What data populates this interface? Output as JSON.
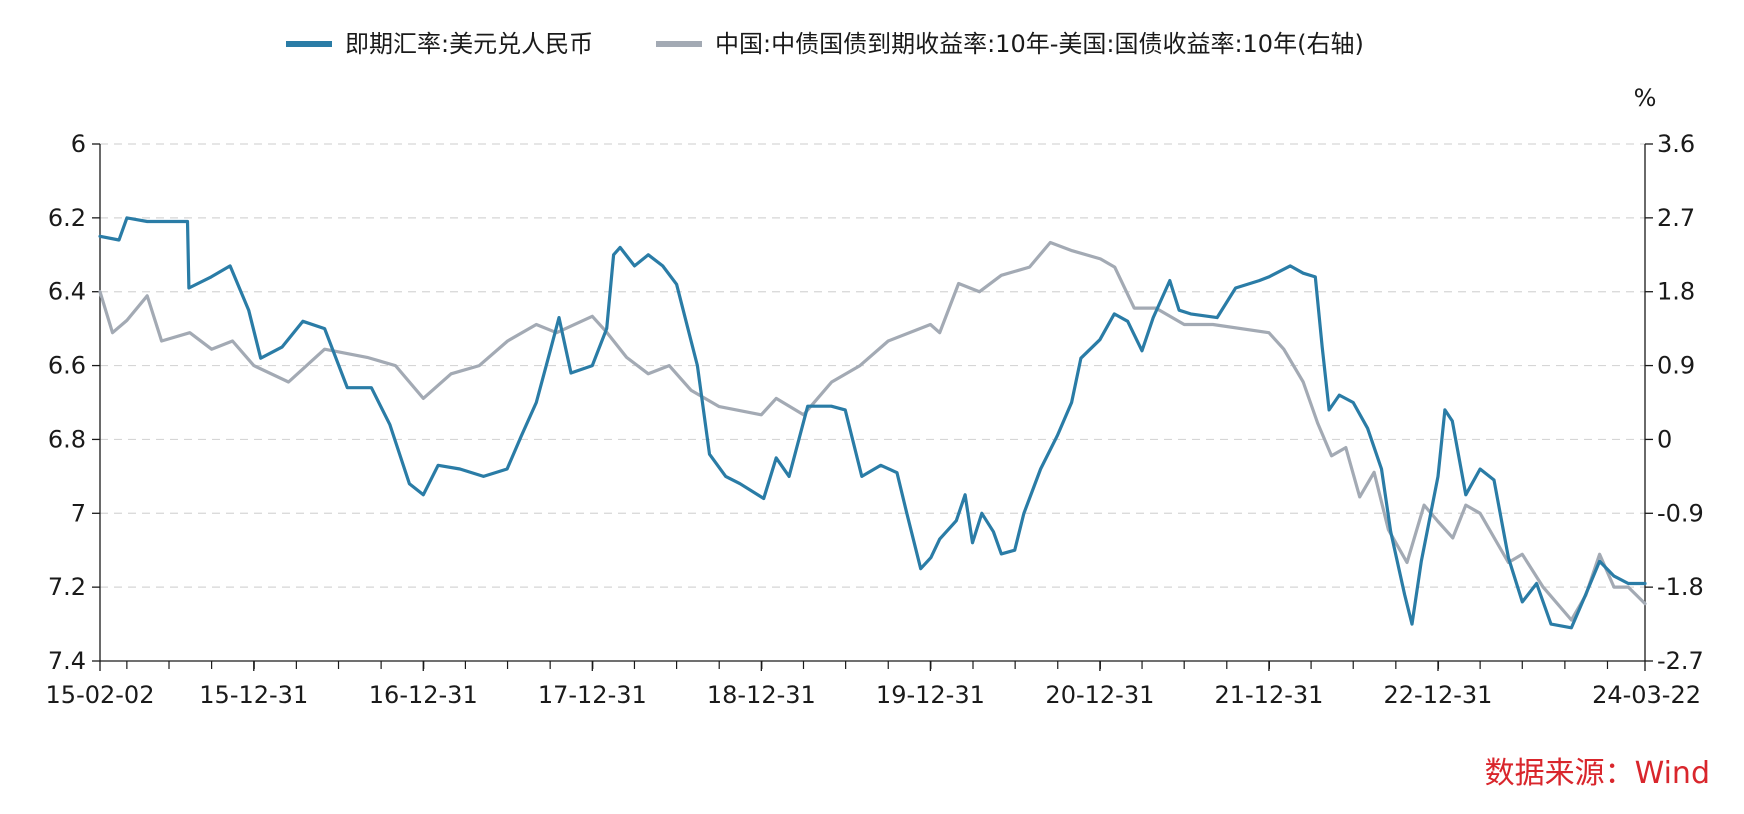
{
  "chart_data": {
    "type": "line",
    "legend_position": "top-center",
    "right_axis_unit": "%",
    "grid": true,
    "y_left": {
      "ylim": [
        6,
        7.4
      ],
      "reversed": true,
      "ticks": [
        "6",
        "6.2",
        "6.4",
        "6.6",
        "6.8",
        "7",
        "7.2",
        "7.4"
      ],
      "tick_values": [
        6,
        6.2,
        6.4,
        6.6,
        6.8,
        7,
        7.2,
        7.4
      ]
    },
    "y_right": {
      "ylim": [
        -2.7,
        3.6
      ],
      "ticks": [
        "3.6",
        "2.7",
        "1.8",
        "0.9",
        "0",
        "-0.9",
        "-1.8",
        "-2.7"
      ],
      "tick_values": [
        3.6,
        2.7,
        1.8,
        0.9,
        0,
        -0.9,
        -1.8,
        -2.7
      ]
    },
    "x_ticks": [
      {
        "label": "15-02-02",
        "date": "2015-02-02"
      },
      {
        "label": "15-12-31",
        "date": "2015-12-31"
      },
      {
        "label": "16-12-31",
        "date": "2016-12-31"
      },
      {
        "label": "17-12-31",
        "date": "2017-12-31"
      },
      {
        "label": "18-12-31",
        "date": "2018-12-31"
      },
      {
        "label": "19-12-31",
        "date": "2019-12-31"
      },
      {
        "label": "20-12-31",
        "date": "2020-12-31"
      },
      {
        "label": "21-12-31",
        "date": "2021-12-31"
      },
      {
        "label": "22-12-31",
        "date": "2022-12-31"
      },
      {
        "label": "24-03-22",
        "date": "2024-03-22"
      }
    ],
    "x_range": [
      "2015-02-02",
      "2024-03-22"
    ],
    "series": [
      {
        "name": "即期汇率:美元兑人民币",
        "axis": "left",
        "color": "#2a7ca6",
        "points": [
          [
            "2015-02-02",
            6.25
          ],
          [
            "2015-03-15",
            6.26
          ],
          [
            "2015-04-01",
            6.2
          ],
          [
            "2015-05-15",
            6.21
          ],
          [
            "2015-08-10",
            6.21
          ],
          [
            "2015-08-13",
            6.39
          ],
          [
            "2015-09-30",
            6.36
          ],
          [
            "2015-11-10",
            6.33
          ],
          [
            "2015-12-20",
            6.45
          ],
          [
            "2016-01-15",
            6.58
          ],
          [
            "2016-03-01",
            6.55
          ],
          [
            "2016-04-15",
            6.48
          ],
          [
            "2016-06-01",
            6.5
          ],
          [
            "2016-07-20",
            6.66
          ],
          [
            "2016-09-10",
            6.66
          ],
          [
            "2016-10-20",
            6.76
          ],
          [
            "2016-12-01",
            6.92
          ],
          [
            "2016-12-31",
            6.95
          ],
          [
            "2017-02-01",
            6.87
          ],
          [
            "2017-03-20",
            6.88
          ],
          [
            "2017-05-10",
            6.9
          ],
          [
            "2017-06-30",
            6.88
          ],
          [
            "2017-07-31",
            6.79
          ],
          [
            "2017-09-01",
            6.7
          ],
          [
            "2017-10-01",
            6.56
          ],
          [
            "2017-10-20",
            6.47
          ],
          [
            "2017-11-15",
            6.62
          ],
          [
            "2017-12-31",
            6.6
          ],
          [
            "2018-01-31",
            6.5
          ],
          [
            "2018-02-15",
            6.3
          ],
          [
            "2018-03-01",
            6.28
          ],
          [
            "2018-04-01",
            6.33
          ],
          [
            "2018-05-01",
            6.3
          ],
          [
            "2018-06-01",
            6.33
          ],
          [
            "2018-07-01",
            6.38
          ],
          [
            "2018-08-15",
            6.6
          ],
          [
            "2018-09-10",
            6.84
          ],
          [
            "2018-10-15",
            6.9
          ],
          [
            "2018-11-15",
            6.92
          ],
          [
            "2019-01-05",
            6.96
          ],
          [
            "2019-02-01",
            6.85
          ],
          [
            "2019-03-01",
            6.9
          ],
          [
            "2019-04-10",
            6.71
          ],
          [
            "2019-05-31",
            6.71
          ],
          [
            "2019-06-30",
            6.72
          ],
          [
            "2019-08-05",
            6.9
          ],
          [
            "2019-09-15",
            6.87
          ],
          [
            "2019-10-20",
            6.89
          ],
          [
            "2019-11-10",
            7.0
          ],
          [
            "2019-12-10",
            7.15
          ],
          [
            "2020-01-01",
            7.12
          ],
          [
            "2020-01-20",
            7.07
          ],
          [
            "2020-02-25",
            7.02
          ],
          [
            "2020-03-15",
            6.95
          ],
          [
            "2020-03-31",
            7.08
          ],
          [
            "2020-04-20",
            7.0
          ],
          [
            "2020-05-15",
            7.05
          ],
          [
            "2020-06-01",
            7.11
          ],
          [
            "2020-06-30",
            7.1
          ],
          [
            "2020-07-20",
            7.0
          ],
          [
            "2020-08-25",
            6.88
          ],
          [
            "2020-09-30",
            6.79
          ],
          [
            "2020-10-31",
            6.7
          ],
          [
            "2020-11-20",
            6.58
          ],
          [
            "2020-12-31",
            6.53
          ],
          [
            "2021-01-31",
            6.46
          ],
          [
            "2021-03-01",
            6.48
          ],
          [
            "2021-04-01",
            6.56
          ],
          [
            "2021-04-25",
            6.47
          ],
          [
            "2021-05-31",
            6.37
          ],
          [
            "2021-06-20",
            6.45
          ],
          [
            "2021-07-15",
            6.46
          ],
          [
            "2021-09-10",
            6.47
          ],
          [
            "2021-10-20",
            6.39
          ],
          [
            "2021-12-10",
            6.37
          ],
          [
            "2021-12-31",
            6.36
          ],
          [
            "2022-02-15",
            6.33
          ],
          [
            "2022-03-15",
            6.35
          ],
          [
            "2022-04-10",
            6.36
          ],
          [
            "2022-04-25",
            6.55
          ],
          [
            "2022-05-10",
            6.72
          ],
          [
            "2022-06-01",
            6.68
          ],
          [
            "2022-07-01",
            6.7
          ],
          [
            "2022-08-01",
            6.77
          ],
          [
            "2022-08-31",
            6.88
          ],
          [
            "2022-09-20",
            7.05
          ],
          [
            "2022-10-20",
            7.22
          ],
          [
            "2022-11-05",
            7.3
          ],
          [
            "2022-11-25",
            7.13
          ],
          [
            "2022-12-31",
            6.9
          ],
          [
            "2023-01-15",
            6.72
          ],
          [
            "2023-01-31",
            6.75
          ],
          [
            "2023-03-01",
            6.95
          ],
          [
            "2023-04-01",
            6.88
          ],
          [
            "2023-05-01",
            6.91
          ],
          [
            "2023-06-01",
            7.12
          ],
          [
            "2023-07-01",
            7.24
          ],
          [
            "2023-08-01",
            7.19
          ],
          [
            "2023-09-01",
            7.3
          ],
          [
            "2023-10-15",
            7.31
          ],
          [
            "2023-11-15",
            7.22
          ],
          [
            "2023-12-15",
            7.13
          ],
          [
            "2024-01-15",
            7.17
          ],
          [
            "2024-02-15",
            7.19
          ],
          [
            "2024-03-22",
            7.19
          ]
        ]
      },
      {
        "name": "中国:中债国债到期收益率:10年-美国:国债收益率:10年(右轴)",
        "axis": "right",
        "color": "#a3aab4",
        "points": [
          [
            "2015-02-02",
            1.8
          ],
          [
            "2015-03-01",
            1.3
          ],
          [
            "2015-04-01",
            1.45
          ],
          [
            "2015-05-15",
            1.75
          ],
          [
            "2015-06-15",
            1.2
          ],
          [
            "2015-08-15",
            1.3
          ],
          [
            "2015-10-01",
            1.1
          ],
          [
            "2015-11-15",
            1.2
          ],
          [
            "2015-12-31",
            0.9
          ],
          [
            "2016-03-15",
            0.7
          ],
          [
            "2016-06-01",
            1.1
          ],
          [
            "2016-09-01",
            1.0
          ],
          [
            "2016-11-01",
            0.9
          ],
          [
            "2016-12-31",
            0.5
          ],
          [
            "2017-03-01",
            0.8
          ],
          [
            "2017-05-01",
            0.9
          ],
          [
            "2017-07-01",
            1.2
          ],
          [
            "2017-09-01",
            1.4
          ],
          [
            "2017-10-15",
            1.3
          ],
          [
            "2017-12-31",
            1.5
          ],
          [
            "2018-02-01",
            1.3
          ],
          [
            "2018-03-15",
            1.0
          ],
          [
            "2018-05-01",
            0.8
          ],
          [
            "2018-06-15",
            0.9
          ],
          [
            "2018-08-01",
            0.6
          ],
          [
            "2018-10-01",
            0.4
          ],
          [
            "2018-12-31",
            0.3
          ],
          [
            "2019-02-01",
            0.5
          ],
          [
            "2019-04-01",
            0.3
          ],
          [
            "2019-06-01",
            0.7
          ],
          [
            "2019-08-01",
            0.9
          ],
          [
            "2019-10-01",
            1.2
          ],
          [
            "2019-12-31",
            1.4
          ],
          [
            "2020-01-20",
            1.3
          ],
          [
            "2020-03-01",
            1.9
          ],
          [
            "2020-04-15",
            1.8
          ],
          [
            "2020-06-01",
            2.0
          ],
          [
            "2020-08-01",
            2.1
          ],
          [
            "2020-09-15",
            2.4
          ],
          [
            "2020-11-01",
            2.3
          ],
          [
            "2021-01-01",
            2.2
          ],
          [
            "2021-02-01",
            2.1
          ],
          [
            "2021-03-15",
            1.6
          ],
          [
            "2021-05-01",
            1.6
          ],
          [
            "2021-07-01",
            1.4
          ],
          [
            "2021-09-01",
            1.4
          ],
          [
            "2021-12-31",
            1.3
          ],
          [
            "2022-02-01",
            1.1
          ],
          [
            "2022-03-15",
            0.7
          ],
          [
            "2022-04-15",
            0.2
          ],
          [
            "2022-05-15",
            -0.2
          ],
          [
            "2022-06-15",
            -0.1
          ],
          [
            "2022-07-15",
            -0.7
          ],
          [
            "2022-08-15",
            -0.4
          ],
          [
            "2022-09-15",
            -1.1
          ],
          [
            "2022-10-25",
            -1.5
          ],
          [
            "2022-12-01",
            -0.8
          ],
          [
            "2022-12-31",
            -1.0
          ],
          [
            "2023-02-01",
            -1.2
          ],
          [
            "2023-03-01",
            -0.8
          ],
          [
            "2023-04-01",
            -0.9
          ],
          [
            "2023-06-01",
            -1.5
          ],
          [
            "2023-07-01",
            -1.4
          ],
          [
            "2023-08-15",
            -1.8
          ],
          [
            "2023-10-15",
            -2.2
          ],
          [
            "2023-11-15",
            -1.9
          ],
          [
            "2023-12-15",
            -1.4
          ],
          [
            "2024-01-15",
            -1.8
          ],
          [
            "2024-02-15",
            -1.8
          ],
          [
            "2024-03-22",
            -2.0
          ]
        ]
      }
    ]
  },
  "source_note": "数据来源：Wind"
}
